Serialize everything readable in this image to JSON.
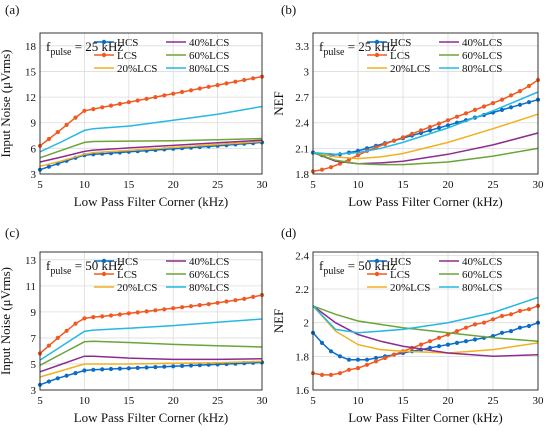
{
  "colors": {
    "HCS": "#0b6cc7",
    "LCS": "#f05a22",
    "20%LCS": "#f2b01e",
    "40%LCS": "#8e2b8f",
    "60%LCS": "#6aa53a",
    "80%LCS": "#25b8e2"
  },
  "chart_data": [
    {
      "type": "line",
      "panel": "(a)",
      "annotation": "f_pulse = 25 kHz",
      "xlabel": "Low Pass Filter Corner (kHz)",
      "ylabel": "Input Noise (μVrms)",
      "xlim": [
        5,
        30
      ],
      "ylim": [
        3,
        19.5
      ],
      "xticks": [
        "5",
        "10",
        "15",
        "20",
        "25",
        "30"
      ],
      "yticks": [
        "3",
        "6",
        "9",
        "12",
        "15",
        "18"
      ],
      "grid": true,
      "legend": "top, two columns",
      "series": [
        {
          "name": "HCS",
          "marker": "dot",
          "x": [
            5,
            6,
            7,
            8,
            9,
            10,
            11,
            12,
            13,
            14,
            15,
            16,
            17,
            18,
            19,
            20,
            21,
            22,
            23,
            24,
            25,
            26,
            27,
            28,
            29,
            30
          ],
          "y": [
            3.5,
            3.85,
            4.2,
            4.55,
            4.9,
            5.2,
            5.3,
            5.38,
            5.45,
            5.52,
            5.6,
            5.67,
            5.74,
            5.81,
            5.88,
            5.95,
            6.02,
            6.09,
            6.16,
            6.23,
            6.3,
            6.38,
            6.46,
            6.54,
            6.62,
            6.7
          ]
        },
        {
          "name": "LCS",
          "marker": "dot",
          "x": [
            5,
            6,
            7,
            8,
            9,
            10,
            11,
            12,
            13,
            14,
            15,
            16,
            17,
            18,
            19,
            20,
            21,
            22,
            23,
            24,
            25,
            26,
            27,
            28,
            29,
            30
          ],
          "y": [
            6.3,
            7.1,
            7.9,
            8.75,
            9.6,
            10.4,
            10.6,
            10.8,
            11.0,
            11.2,
            11.4,
            11.6,
            11.8,
            12.0,
            12.2,
            12.4,
            12.6,
            12.8,
            13.0,
            13.2,
            13.4,
            13.6,
            13.8,
            14.0,
            14.2,
            14.4
          ]
        },
        {
          "name": "20%LCS",
          "marker": "none",
          "x": [
            5,
            7.5,
            10,
            11,
            15,
            20,
            25,
            30
          ],
          "y": [
            3.9,
            4.55,
            5.3,
            5.5,
            5.75,
            6.1,
            6.45,
            6.8
          ]
        },
        {
          "name": "40%LCS",
          "marker": "none",
          "x": [
            5,
            7.5,
            10,
            11,
            15,
            20,
            25,
            30
          ],
          "y": [
            4.4,
            5.0,
            5.65,
            5.8,
            6.05,
            6.35,
            6.65,
            6.95
          ]
        },
        {
          "name": "60%LCS",
          "marker": "none",
          "x": [
            5,
            7.5,
            10,
            11,
            15,
            20,
            25,
            30
          ],
          "y": [
            4.9,
            5.8,
            6.7,
            6.8,
            6.85,
            6.9,
            7.0,
            7.15
          ]
        },
        {
          "name": "80%LCS",
          "marker": "none",
          "x": [
            5,
            7.5,
            10,
            11,
            15,
            20,
            25,
            30
          ],
          "y": [
            5.6,
            6.8,
            8.1,
            8.3,
            8.6,
            9.3,
            10.0,
            10.9
          ]
        }
      ]
    },
    {
      "type": "line",
      "panel": "(b)",
      "annotation": "f_pulse = 25 kHz",
      "xlabel": "Low Pass Filter Corner (kHz)",
      "ylabel": "NEF",
      "xlim": [
        5,
        30
      ],
      "ylim": [
        1.8,
        3.45
      ],
      "xticks": [
        "5",
        "10",
        "15",
        "20",
        "25",
        "30"
      ],
      "yticks": [
        "1.8",
        "2.1",
        "2.4",
        "2.7",
        "3",
        "3.3"
      ],
      "grid": true,
      "legend": "top, two columns",
      "series": [
        {
          "name": "HCS",
          "marker": "dot",
          "x": [
            5,
            6,
            7,
            8,
            9,
            10,
            11,
            12,
            13,
            14,
            15,
            16,
            17,
            18,
            19,
            20,
            21,
            22,
            23,
            24,
            25,
            26,
            27,
            28,
            29,
            30
          ],
          "y": [
            2.05,
            2.02,
            2.02,
            2.03,
            2.05,
            2.07,
            2.1,
            2.13,
            2.16,
            2.19,
            2.22,
            2.25,
            2.28,
            2.31,
            2.34,
            2.37,
            2.4,
            2.43,
            2.46,
            2.49,
            2.52,
            2.55,
            2.58,
            2.61,
            2.64,
            2.67
          ]
        },
        {
          "name": "LCS",
          "marker": "dot",
          "x": [
            5,
            6,
            7,
            8,
            9,
            10,
            11,
            12,
            13,
            14,
            15,
            16,
            17,
            18,
            19,
            20,
            21,
            22,
            23,
            24,
            25,
            26,
            27,
            28,
            29,
            30
          ],
          "y": [
            1.83,
            1.85,
            1.88,
            1.92,
            1.97,
            2.02,
            2.07,
            2.11,
            2.15,
            2.19,
            2.23,
            2.27,
            2.31,
            2.35,
            2.39,
            2.43,
            2.47,
            2.51,
            2.55,
            2.59,
            2.63,
            2.67,
            2.72,
            2.77,
            2.83,
            2.9
          ]
        },
        {
          "name": "20%LCS",
          "marker": "none",
          "x": [
            5,
            7.5,
            10,
            12.5,
            15,
            20,
            25,
            30
          ],
          "y": [
            2.05,
            2.0,
            1.98,
            2.0,
            2.04,
            2.17,
            2.33,
            2.5
          ]
        },
        {
          "name": "40%LCS",
          "marker": "none",
          "x": [
            5,
            7.5,
            10,
            12.5,
            15,
            20,
            25,
            30
          ],
          "y": [
            2.05,
            1.95,
            1.92,
            1.93,
            1.95,
            2.03,
            2.14,
            2.28
          ]
        },
        {
          "name": "60%LCS",
          "marker": "none",
          "x": [
            5,
            7.5,
            10,
            12.5,
            15,
            20,
            25,
            30
          ],
          "y": [
            2.05,
            1.96,
            1.92,
            1.91,
            1.91,
            1.94,
            2.01,
            2.1
          ]
        },
        {
          "name": "80%LCS",
          "marker": "none",
          "x": [
            5,
            7.5,
            10,
            12.5,
            15,
            20,
            25,
            30
          ],
          "y": [
            2.05,
            2.03,
            2.05,
            2.1,
            2.17,
            2.34,
            2.54,
            2.76
          ]
        }
      ]
    },
    {
      "type": "line",
      "panel": "(c)",
      "annotation": "f_pulse = 50 kHz",
      "xlabel": "Low Pass Filter Corner (kHz)",
      "ylabel": "Input Noise (μVrms)",
      "xlim": [
        5,
        30
      ],
      "ylim": [
        3,
        13.6
      ],
      "xticks": [
        "5",
        "10",
        "15",
        "20",
        "25",
        "30"
      ],
      "yticks": [
        "3",
        "5",
        "7",
        "9",
        "11",
        "13"
      ],
      "grid": true,
      "legend": "top, two columns",
      "series": [
        {
          "name": "HCS",
          "marker": "dot",
          "x": [
            5,
            6,
            7,
            8,
            9,
            10,
            11,
            12,
            13,
            14,
            15,
            16,
            17,
            18,
            19,
            20,
            21,
            22,
            23,
            24,
            25,
            26,
            27,
            28,
            29,
            30
          ],
          "y": [
            3.4,
            3.65,
            3.9,
            4.1,
            4.3,
            4.5,
            4.55,
            4.58,
            4.61,
            4.64,
            4.67,
            4.7,
            4.73,
            4.76,
            4.79,
            4.82,
            4.85,
            4.88,
            4.91,
            4.94,
            4.97,
            5.0,
            5.03,
            5.06,
            5.09,
            5.12
          ]
        },
        {
          "name": "LCS",
          "marker": "dot",
          "x": [
            5,
            6,
            7,
            8,
            9,
            10,
            11,
            12,
            13,
            14,
            15,
            16,
            17,
            18,
            19,
            20,
            21,
            22,
            23,
            24,
            25,
            26,
            27,
            28,
            29,
            30
          ],
          "y": [
            5.8,
            6.4,
            7.0,
            7.55,
            8.1,
            8.5,
            8.6,
            8.65,
            8.72,
            8.8,
            8.88,
            8.96,
            9.04,
            9.12,
            9.2,
            9.28,
            9.36,
            9.44,
            9.52,
            9.6,
            9.7,
            9.8,
            9.9,
            10.0,
            10.15,
            10.3
          ]
        },
        {
          "name": "20%LCS",
          "marker": "none",
          "x": [
            5,
            7.5,
            10,
            11,
            15,
            20,
            25,
            30
          ],
          "y": [
            4.0,
            4.5,
            5.0,
            5.0,
            5.0,
            5.05,
            5.1,
            5.2
          ]
        },
        {
          "name": "40%LCS",
          "marker": "none",
          "x": [
            5,
            7.5,
            10,
            11,
            15,
            20,
            25,
            30
          ],
          "y": [
            4.4,
            5.0,
            5.6,
            5.6,
            5.45,
            5.35,
            5.35,
            5.4
          ]
        },
        {
          "name": "60%LCS",
          "marker": "none",
          "x": [
            5,
            7.5,
            10,
            11,
            15,
            20,
            25,
            30
          ],
          "y": [
            4.9,
            5.8,
            6.7,
            6.75,
            6.65,
            6.5,
            6.4,
            6.3
          ]
        },
        {
          "name": "80%LCS",
          "marker": "none",
          "x": [
            5,
            7.5,
            10,
            11,
            15,
            20,
            25,
            30
          ],
          "y": [
            5.3,
            6.4,
            7.5,
            7.6,
            7.75,
            7.95,
            8.2,
            8.45
          ]
        }
      ]
    },
    {
      "type": "line",
      "panel": "(d)",
      "annotation": "f_pulse = 50 kHz",
      "xlabel": "Low Pass Filter Corner (kHz)",
      "ylabel": "NEF",
      "xlim": [
        5,
        30
      ],
      "ylim": [
        1.6,
        2.42
      ],
      "xticks": [
        "5",
        "10",
        "15",
        "20",
        "25",
        "30"
      ],
      "yticks": [
        "1.6",
        "1.8",
        "2",
        "2.2",
        "2.4"
      ],
      "grid": true,
      "legend": "top, two columns",
      "series": [
        {
          "name": "HCS",
          "marker": "dot",
          "x": [
            5,
            6,
            7,
            8,
            9,
            10,
            11,
            12,
            13,
            14,
            15,
            16,
            17,
            18,
            19,
            20,
            21,
            22,
            23,
            24,
            25,
            26,
            27,
            28,
            29,
            30
          ],
          "y": [
            1.94,
            1.88,
            1.83,
            1.8,
            1.78,
            1.78,
            1.78,
            1.79,
            1.8,
            1.81,
            1.82,
            1.83,
            1.84,
            1.85,
            1.86,
            1.87,
            1.88,
            1.89,
            1.9,
            1.91,
            1.92,
            1.94,
            1.95,
            1.97,
            1.98,
            2.0
          ]
        },
        {
          "name": "LCS",
          "marker": "dot",
          "x": [
            5,
            6,
            7,
            8,
            9,
            10,
            11,
            12,
            13,
            14,
            15,
            16,
            17,
            18,
            19,
            20,
            21,
            22,
            23,
            24,
            25,
            26,
            27,
            28,
            29,
            30
          ],
          "y": [
            1.7,
            1.69,
            1.69,
            1.7,
            1.72,
            1.73,
            1.75,
            1.77,
            1.79,
            1.81,
            1.83,
            1.85,
            1.87,
            1.89,
            1.91,
            1.93,
            1.95,
            1.97,
            1.99,
            2.0,
            2.02,
            2.04,
            2.05,
            2.07,
            2.08,
            2.1
          ]
        },
        {
          "name": "20%LCS",
          "marker": "none",
          "x": [
            5,
            7.5,
            10,
            12.5,
            15,
            20,
            25,
            30
          ],
          "y": [
            2.1,
            1.95,
            1.87,
            1.84,
            1.83,
            1.82,
            1.84,
            1.88
          ]
        },
        {
          "name": "40%LCS",
          "marker": "none",
          "x": [
            5,
            7.5,
            10,
            12.5,
            15,
            20,
            25,
            30
          ],
          "y": [
            2.1,
            2.0,
            1.93,
            1.89,
            1.86,
            1.82,
            1.8,
            1.81
          ]
        },
        {
          "name": "60%LCS",
          "marker": "none",
          "x": [
            5,
            7.5,
            10,
            12.5,
            15,
            20,
            25,
            30
          ],
          "y": [
            2.1,
            2.05,
            2.01,
            1.99,
            1.97,
            1.94,
            1.91,
            1.89
          ]
        },
        {
          "name": "80%LCS",
          "marker": "none",
          "x": [
            5,
            7.5,
            10,
            12.5,
            15,
            20,
            25,
            30
          ],
          "y": [
            2.1,
            1.96,
            1.94,
            1.95,
            1.96,
            2.0,
            2.06,
            2.15
          ]
        }
      ]
    }
  ]
}
